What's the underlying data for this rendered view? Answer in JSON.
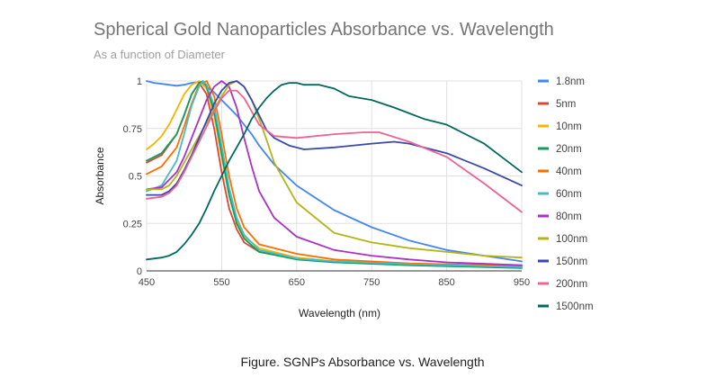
{
  "caption": "Figure. SGNPs Absorbance vs. Wavelength",
  "chart_data": {
    "type": "line",
    "title": "Spherical Gold Nanoparticles Absorbance vs. Wavelength",
    "subtitle": "As a function of Diameter",
    "xlabel": "Wavelength (nm)",
    "ylabel": "Absorbance",
    "xlim": [
      450,
      950
    ],
    "ylim": [
      0,
      1
    ],
    "xticks": [
      450,
      550,
      650,
      750,
      850,
      950
    ],
    "yticks": [
      0,
      0.25,
      0.5,
      0.75,
      1
    ],
    "ytick_labels": [
      "0",
      "0.25",
      "0.5",
      "0.75",
      "1"
    ],
    "grid": true,
    "legend_position": "right",
    "series": [
      {
        "name": "1.8nm",
        "color": "#4285f4",
        "x": [
          450,
          460,
          470,
          480,
          490,
          500,
          510,
          520,
          530,
          540,
          550,
          560,
          570,
          580,
          590,
          600,
          620,
          650,
          700,
          750,
          800,
          850,
          900,
          950
        ],
        "y": [
          1.0,
          0.99,
          0.985,
          0.98,
          0.975,
          0.98,
          0.99,
          0.995,
          0.97,
          0.94,
          0.9,
          0.86,
          0.82,
          0.77,
          0.72,
          0.66,
          0.56,
          0.45,
          0.32,
          0.23,
          0.16,
          0.11,
          0.08,
          0.05
        ]
      },
      {
        "name": "5nm",
        "color": "#db4437",
        "x": [
          450,
          470,
          490,
          500,
          510,
          520,
          530,
          540,
          550,
          560,
          570,
          580,
          600,
          650,
          700,
          800,
          950
        ],
        "y": [
          0.57,
          0.61,
          0.72,
          0.82,
          0.93,
          0.99,
          0.93,
          0.75,
          0.52,
          0.33,
          0.22,
          0.15,
          0.1,
          0.065,
          0.05,
          0.035,
          0.02
        ]
      },
      {
        "name": "10nm",
        "color": "#f4b400",
        "x": [
          450,
          460,
          470,
          480,
          490,
          500,
          510,
          520,
          530,
          540,
          550,
          560,
          570,
          580,
          600,
          650,
          700,
          800,
          950
        ],
        "y": [
          0.64,
          0.67,
          0.71,
          0.77,
          0.85,
          0.93,
          0.98,
          1.0,
          0.96,
          0.82,
          0.6,
          0.4,
          0.26,
          0.18,
          0.12,
          0.07,
          0.05,
          0.035,
          0.02
        ]
      },
      {
        "name": "20nm",
        "color": "#0f9d58",
        "x": [
          450,
          470,
          490,
          500,
          510,
          520,
          525,
          530,
          540,
          550,
          560,
          570,
          580,
          600,
          650,
          700,
          800,
          950
        ],
        "y": [
          0.58,
          0.62,
          0.72,
          0.82,
          0.93,
          0.99,
          1.0,
          0.97,
          0.84,
          0.62,
          0.4,
          0.25,
          0.17,
          0.1,
          0.06,
          0.045,
          0.03,
          0.015
        ]
      },
      {
        "name": "40nm",
        "color": "#ff6d00",
        "x": [
          450,
          470,
          490,
          500,
          510,
          520,
          530,
          540,
          550,
          560,
          570,
          580,
          600,
          650,
          700,
          800,
          950
        ],
        "y": [
          0.51,
          0.55,
          0.65,
          0.76,
          0.88,
          0.98,
          1.0,
          0.92,
          0.72,
          0.5,
          0.33,
          0.23,
          0.14,
          0.09,
          0.06,
          0.04,
          0.025
        ]
      },
      {
        "name": "60nm",
        "color": "#46bdc6",
        "x": [
          450,
          470,
          490,
          500,
          510,
          520,
          525,
          530,
          540,
          550,
          560,
          570,
          580,
          600,
          650,
          700,
          800,
          950
        ],
        "y": [
          0.42,
          0.45,
          0.58,
          0.72,
          0.87,
          0.97,
          1.0,
          0.98,
          0.87,
          0.66,
          0.44,
          0.28,
          0.19,
          0.11,
          0.065,
          0.05,
          0.035,
          0.02
        ]
      },
      {
        "name": "80nm",
        "color": "#ab30c4",
        "x": [
          450,
          470,
          490,
          500,
          510,
          520,
          530,
          540,
          550,
          560,
          570,
          580,
          590,
          600,
          620,
          650,
          700,
          750,
          800,
          850,
          950
        ],
        "y": [
          0.43,
          0.44,
          0.52,
          0.6,
          0.7,
          0.8,
          0.9,
          0.97,
          1.0,
          0.97,
          0.86,
          0.7,
          0.55,
          0.42,
          0.28,
          0.18,
          0.11,
          0.08,
          0.06,
          0.045,
          0.03
        ]
      },
      {
        "name": "100nm",
        "color": "#b5b416",
        "x": [
          450,
          470,
          480,
          490,
          500,
          510,
          520,
          530,
          540,
          550,
          560,
          570,
          580,
          590,
          600,
          610,
          620,
          650,
          700,
          750,
          800,
          850,
          900,
          950
        ],
        "y": [
          0.43,
          0.43,
          0.45,
          0.5,
          0.57,
          0.64,
          0.71,
          0.78,
          0.85,
          0.92,
          0.98,
          1.0,
          0.97,
          0.9,
          0.8,
          0.69,
          0.57,
          0.36,
          0.2,
          0.15,
          0.12,
          0.1,
          0.08,
          0.07
        ]
      },
      {
        "name": "150nm",
        "color": "#3949ab",
        "x": [
          450,
          470,
          480,
          490,
          500,
          510,
          520,
          530,
          540,
          550,
          560,
          570,
          580,
          590,
          600,
          610,
          620,
          640,
          660,
          700,
          750,
          780,
          800,
          850,
          900,
          950
        ],
        "y": [
          0.4,
          0.4,
          0.42,
          0.46,
          0.53,
          0.61,
          0.7,
          0.79,
          0.88,
          0.95,
          0.99,
          1.0,
          0.97,
          0.9,
          0.82,
          0.74,
          0.7,
          0.66,
          0.64,
          0.65,
          0.67,
          0.68,
          0.67,
          0.62,
          0.54,
          0.45
        ]
      },
      {
        "name": "200nm",
        "color": "#f06292",
        "x": [
          450,
          470,
          480,
          490,
          500,
          510,
          520,
          530,
          540,
          550,
          560,
          570,
          580,
          590,
          600,
          620,
          650,
          700,
          740,
          760,
          800,
          850,
          900,
          950
        ],
        "y": [
          0.38,
          0.39,
          0.41,
          0.45,
          0.52,
          0.6,
          0.68,
          0.76,
          0.84,
          0.91,
          0.95,
          0.95,
          0.91,
          0.84,
          0.77,
          0.71,
          0.7,
          0.72,
          0.73,
          0.73,
          0.68,
          0.6,
          0.46,
          0.31
        ]
      },
      {
        "name": "1500nm",
        "color": "#00695c",
        "x": [
          450,
          470,
          480,
          490,
          500,
          510,
          520,
          530,
          540,
          550,
          560,
          570,
          580,
          590,
          600,
          610,
          620,
          630,
          640,
          650,
          660,
          680,
          700,
          720,
          750,
          780,
          800,
          820,
          850,
          870,
          900,
          920,
          950
        ],
        "y": [
          0.06,
          0.07,
          0.08,
          0.1,
          0.14,
          0.19,
          0.25,
          0.33,
          0.42,
          0.5,
          0.58,
          0.65,
          0.72,
          0.8,
          0.86,
          0.91,
          0.95,
          0.98,
          0.99,
          0.99,
          0.98,
          0.98,
          0.96,
          0.92,
          0.9,
          0.86,
          0.83,
          0.8,
          0.77,
          0.73,
          0.67,
          0.61,
          0.52
        ]
      }
    ]
  }
}
